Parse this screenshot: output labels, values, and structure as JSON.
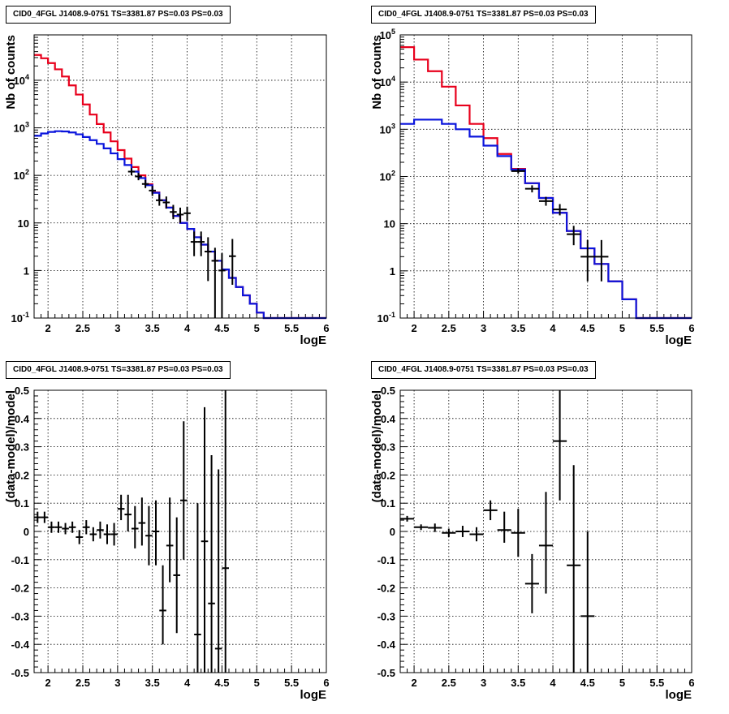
{
  "chart_data": [
    {
      "type": "line",
      "title": "CID0_4FGL J1408.9-0751 TS=3381.87 PS=0.03 PS=0.03",
      "xlabel": "logE",
      "ylabel": "Nb of counts",
      "yscale": "log",
      "xlim": [
        1.8,
        6
      ],
      "ylim": [
        0.1,
        90000
      ],
      "xticks": [
        "2",
        "2.5",
        "3",
        "3.5",
        "4",
        "4.5",
        "5",
        "5.5",
        "6"
      ],
      "yticks": [
        "10^-1",
        "1",
        "10",
        "10^2",
        "10^3",
        "10^4"
      ],
      "grid": true,
      "series": [
        {
          "color": "#e8001c",
          "style": "histogram",
          "edges": [
            1.8,
            1.9,
            2.0,
            2.1,
            2.2,
            2.3,
            2.4,
            2.5,
            2.6,
            2.7,
            2.8,
            2.9,
            3.0,
            3.1,
            3.2,
            3.3,
            3.4,
            3.5,
            3.6,
            3.7,
            3.8,
            3.9,
            4.0,
            4.1,
            4.2,
            4.3,
            4.4,
            4.5,
            4.6,
            4.7,
            4.8,
            4.9,
            5.0,
            5.1,
            6.0
          ],
          "values": [
            34000,
            29000,
            23000,
            17000,
            12000,
            7800,
            5000,
            3100,
            1900,
            1200,
            800,
            520,
            340,
            225,
            150,
            100,
            65,
            44,
            30,
            21,
            14,
            10,
            7.5,
            5,
            3.5,
            2.5,
            1.6,
            1.05,
            0.7,
            0.45,
            0.3,
            0.2,
            0.13,
            0.1
          ]
        },
        {
          "color": "#0a14dc",
          "style": "histogram",
          "edges": [
            1.8,
            1.9,
            2.0,
            2.1,
            2.2,
            2.3,
            2.4,
            2.5,
            2.6,
            2.7,
            2.8,
            2.9,
            3.0,
            3.1,
            3.2,
            3.3,
            3.4,
            3.5,
            3.6,
            3.7,
            3.8,
            3.9,
            4.0,
            4.1,
            4.2,
            4.3,
            4.4,
            4.5,
            4.6,
            4.7,
            4.8,
            4.9,
            5.0,
            5.1,
            6.0
          ],
          "values": [
            680,
            760,
            820,
            850,
            840,
            800,
            730,
            640,
            550,
            460,
            370,
            290,
            220,
            165,
            120,
            88,
            62,
            43,
            30,
            21,
            14,
            10,
            7.5,
            5,
            3.5,
            2.5,
            1.6,
            1.05,
            0.7,
            0.45,
            0.3,
            0.2,
            0.13,
            0.1
          ]
        },
        {
          "style": "data-points",
          "color": "#000000",
          "points": [
            {
              "x": 3.2,
              "y": 120,
              "xerr": 0.05,
              "ylo": 100,
              "yhi": 142
            },
            {
              "x": 3.3,
              "y": 95,
              "xerr": 0.05,
              "ylo": 79,
              "yhi": 113
            },
            {
              "x": 3.4,
              "y": 66,
              "xerr": 0.05,
              "ylo": 54,
              "yhi": 80
            },
            {
              "x": 3.5,
              "y": 48,
              "xerr": 0.05,
              "ylo": 37,
              "yhi": 60
            },
            {
              "x": 3.6,
              "y": 30,
              "xerr": 0.05,
              "ylo": 23,
              "yhi": 40
            },
            {
              "x": 3.7,
              "y": 27,
              "xerr": 0.05,
              "ylo": 20,
              "yhi": 36
            },
            {
              "x": 3.8,
              "y": 17,
              "xerr": 0.05,
              "ylo": 12,
              "yhi": 24
            },
            {
              "x": 3.9,
              "y": 15,
              "xerr": 0.05,
              "ylo": 10,
              "yhi": 21
            },
            {
              "x": 4.0,
              "y": 16,
              "xerr": 0.05,
              "ylo": 11,
              "yhi": 22
            },
            {
              "x": 4.1,
              "y": 4,
              "xerr": 0.05,
              "ylo": 2,
              "yhi": 6.6
            },
            {
              "x": 4.2,
              "y": 4,
              "xerr": 0.05,
              "ylo": 2,
              "yhi": 6.6
            },
            {
              "x": 4.3,
              "y": 2.5,
              "xerr": 0.05,
              "ylo": 0.6,
              "yhi": 5
            },
            {
              "x": 4.4,
              "y": 1.6,
              "xerr": 0.05,
              "ylo": 0.1,
              "yhi": 3
            },
            {
              "x": 4.5,
              "y": 1,
              "xerr": 0.05,
              "ylo": 0.1,
              "yhi": 2.3
            },
            {
              "x": 4.65,
              "y": 2,
              "xerr": 0.05,
              "ylo": 0.5,
              "yhi": 4.6
            }
          ]
        }
      ]
    },
    {
      "type": "line",
      "title": "CID0_4FGL J1408.9-0751 TS=3381.87 PS=0.03 PS=0.03",
      "xlabel": "logE",
      "ylabel": "Nb of counts",
      "yscale": "log",
      "xlim": [
        1.8,
        6
      ],
      "ylim": [
        0.1,
        100000
      ],
      "xticks": [
        "2",
        "2.5",
        "3",
        "3.5",
        "4",
        "4.5",
        "5",
        "5.5",
        "6"
      ],
      "yticks": [
        "10^-1",
        "1",
        "10",
        "10^2",
        "10^3",
        "10^4",
        "10^5"
      ],
      "grid": true,
      "series": [
        {
          "color": "#e8001c",
          "style": "histogram",
          "edges": [
            1.8,
            2.0,
            2.2,
            2.4,
            2.6,
            2.8,
            3.0,
            3.2,
            3.4,
            3.6,
            3.8,
            4.0,
            4.2,
            4.4,
            4.6,
            4.8,
            5.0,
            5.2,
            6.0
          ],
          "values": [
            55000,
            30000,
            17000,
            8000,
            3200,
            1300,
            650,
            300,
            145,
            72,
            35,
            17,
            7,
            3,
            1.4,
            0.6,
            0.25,
            0.1
          ]
        },
        {
          "color": "#0a14dc",
          "style": "histogram",
          "edges": [
            1.8,
            2.0,
            2.2,
            2.4,
            2.6,
            2.8,
            3.0,
            3.2,
            3.4,
            3.6,
            3.8,
            4.0,
            4.2,
            4.4,
            4.6,
            4.8,
            5.0,
            5.2,
            6.0
          ],
          "values": [
            1300,
            1600,
            1600,
            1300,
            1000,
            700,
            450,
            270,
            140,
            72,
            35,
            17,
            7,
            3,
            1.4,
            0.6,
            0.25,
            0.1
          ]
        },
        {
          "style": "data-points",
          "color": "#000000",
          "points": [
            {
              "x": 3.5,
              "y": 130,
              "xerr": 0.1,
              "ylo": 115,
              "yhi": 150
            },
            {
              "x": 3.7,
              "y": 55,
              "xerr": 0.1,
              "ylo": 46,
              "yhi": 65
            },
            {
              "x": 3.9,
              "y": 30,
              "xerr": 0.1,
              "ylo": 24,
              "yhi": 37
            },
            {
              "x": 4.1,
              "y": 20,
              "xerr": 0.1,
              "ylo": 15,
              "yhi": 26
            },
            {
              "x": 4.3,
              "y": 6,
              "xerr": 0.1,
              "ylo": 3.5,
              "yhi": 9
            },
            {
              "x": 4.5,
              "y": 2,
              "xerr": 0.1,
              "ylo": 0.6,
              "yhi": 4.5
            },
            {
              "x": 4.7,
              "y": 2,
              "xerr": 0.1,
              "ylo": 0.6,
              "yhi": 4.5
            }
          ]
        }
      ]
    },
    {
      "type": "scatter",
      "title": "CID0_4FGL J1408.9-0751 TS=3381.87 PS=0.03 PS=0.03",
      "xlabel": "logE",
      "ylabel": "(data-model)/model",
      "yscale": "linear",
      "xlim": [
        1.8,
        6
      ],
      "ylim": [
        -0.5,
        0.5
      ],
      "xticks": [
        "2",
        "2.5",
        "3",
        "3.5",
        "4",
        "4.5",
        "5",
        "5.5",
        "6"
      ],
      "yticks": [
        "-0.5",
        "-0.4",
        "-0.3",
        "-0.2",
        "-0.1",
        "0",
        "0.1",
        "0.2",
        "0.3",
        "0.4",
        "0.5"
      ],
      "grid": true,
      "series": [
        {
          "style": "data-points",
          "color": "#000000",
          "points": [
            {
              "x": 1.85,
              "y": 0.05,
              "xerr": 0.05,
              "ylo": 0.03,
              "yhi": 0.07
            },
            {
              "x": 1.95,
              "y": 0.05,
              "xerr": 0.05,
              "ylo": 0.03,
              "yhi": 0.07
            },
            {
              "x": 2.05,
              "y": 0.015,
              "xerr": 0.05,
              "ylo": -0.005,
              "yhi": 0.035
            },
            {
              "x": 2.15,
              "y": 0.015,
              "xerr": 0.05,
              "ylo": -0.005,
              "yhi": 0.035
            },
            {
              "x": 2.25,
              "y": 0.01,
              "xerr": 0.05,
              "ylo": -0.01,
              "yhi": 0.03
            },
            {
              "x": 2.35,
              "y": 0.015,
              "xerr": 0.05,
              "ylo": -0.005,
              "yhi": 0.035
            },
            {
              "x": 2.45,
              "y": -0.02,
              "xerr": 0.05,
              "ylo": -0.045,
              "yhi": 0.005
            },
            {
              "x": 2.55,
              "y": 0.015,
              "xerr": 0.05,
              "ylo": -0.01,
              "yhi": 0.04
            },
            {
              "x": 2.65,
              "y": -0.01,
              "xerr": 0.05,
              "ylo": -0.035,
              "yhi": 0.015
            },
            {
              "x": 2.75,
              "y": 0.005,
              "xerr": 0.05,
              "ylo": -0.025,
              "yhi": 0.035
            },
            {
              "x": 2.85,
              "y": -0.01,
              "xerr": 0.05,
              "ylo": -0.045,
              "yhi": 0.025
            },
            {
              "x": 2.95,
              "y": -0.01,
              "xerr": 0.05,
              "ylo": -0.05,
              "yhi": 0.03
            },
            {
              "x": 3.05,
              "y": 0.08,
              "xerr": 0.05,
              "ylo": 0.04,
              "yhi": 0.13
            },
            {
              "x": 3.15,
              "y": 0.06,
              "xerr": 0.05,
              "ylo": 0.0,
              "yhi": 0.13
            },
            {
              "x": 3.25,
              "y": 0.01,
              "xerr": 0.05,
              "ylo": -0.06,
              "yhi": 0.09
            },
            {
              "x": 3.35,
              "y": 0.03,
              "xerr": 0.05,
              "ylo": -0.05,
              "yhi": 0.12
            },
            {
              "x": 3.45,
              "y": -0.015,
              "xerr": 0.05,
              "ylo": -0.12,
              "yhi": 0.09
            },
            {
              "x": 3.55,
              "y": 0.0,
              "xerr": 0.05,
              "ylo": -0.12,
              "yhi": 0.11
            },
            {
              "x": 3.65,
              "y": -0.28,
              "xerr": 0.05,
              "ylo": -0.4,
              "yhi": -0.12
            },
            {
              "x": 3.75,
              "y": -0.05,
              "xerr": 0.05,
              "ylo": -0.18,
              "yhi": 0.12
            },
            {
              "x": 3.85,
              "y": -0.155,
              "xerr": 0.05,
              "ylo": -0.36,
              "yhi": 0.05
            },
            {
              "x": 3.95,
              "y": 0.11,
              "xerr": 0.05,
              "ylo": -0.1,
              "yhi": 0.39
            },
            {
              "x": 4.15,
              "y": -0.365,
              "xerr": 0.05,
              "ylo": -0.5,
              "yhi": 0.1
            },
            {
              "x": 4.25,
              "y": -0.035,
              "xerr": 0.05,
              "ylo": -0.5,
              "yhi": 0.44
            },
            {
              "x": 4.35,
              "y": -0.255,
              "xerr": 0.05,
              "ylo": -0.5,
              "yhi": 0.27
            },
            {
              "x": 4.45,
              "y": -0.415,
              "xerr": 0.05,
              "ylo": -0.5,
              "yhi": 0.22
            },
            {
              "x": 4.55,
              "y": -0.13,
              "xerr": 0.05,
              "ylo": -0.5,
              "yhi": 0.5
            }
          ]
        }
      ]
    },
    {
      "type": "scatter",
      "title": "CID0_4FGL J1408.9-0751 TS=3381.87 PS=0.03 PS=0.03",
      "xlabel": "logE",
      "ylabel": "(data-model)/model",
      "yscale": "linear",
      "xlim": [
        1.8,
        6
      ],
      "ylim": [
        -0.5,
        0.5
      ],
      "xticks": [
        "2",
        "2.5",
        "3",
        "3.5",
        "4",
        "4.5",
        "5",
        "5.5",
        "6"
      ],
      "yticks": [
        "-0.5",
        "-0.4",
        "-0.3",
        "-0.2",
        "-0.1",
        "0",
        "0.1",
        "0.2",
        "0.3",
        "0.4",
        "0.5"
      ],
      "grid": true,
      "series": [
        {
          "style": "data-points",
          "color": "#000000",
          "points": [
            {
              "x": 1.9,
              "y": 0.045,
              "xerr": 0.1,
              "ylo": 0.035,
              "yhi": 0.055
            },
            {
              "x": 2.1,
              "y": 0.015,
              "xerr": 0.1,
              "ylo": 0.005,
              "yhi": 0.025
            },
            {
              "x": 2.3,
              "y": 0.013,
              "xerr": 0.1,
              "ylo": -0.002,
              "yhi": 0.028
            },
            {
              "x": 2.5,
              "y": -0.005,
              "xerr": 0.1,
              "ylo": -0.02,
              "yhi": 0.01
            },
            {
              "x": 2.7,
              "y": 0.0,
              "xerr": 0.1,
              "ylo": -0.02,
              "yhi": 0.02
            },
            {
              "x": 2.9,
              "y": -0.01,
              "xerr": 0.1,
              "ylo": -0.035,
              "yhi": 0.015
            },
            {
              "x": 3.1,
              "y": 0.075,
              "xerr": 0.1,
              "ylo": 0.04,
              "yhi": 0.11
            },
            {
              "x": 3.3,
              "y": 0.005,
              "xerr": 0.1,
              "ylo": -0.04,
              "yhi": 0.07
            },
            {
              "x": 3.5,
              "y": -0.005,
              "xerr": 0.1,
              "ylo": -0.09,
              "yhi": 0.08
            },
            {
              "x": 3.7,
              "y": -0.185,
              "xerr": 0.1,
              "ylo": -0.29,
              "yhi": -0.08
            },
            {
              "x": 3.9,
              "y": -0.05,
              "xerr": 0.1,
              "ylo": -0.22,
              "yhi": 0.14
            },
            {
              "x": 4.1,
              "y": 0.32,
              "xerr": 0.1,
              "ylo": 0.11,
              "yhi": 0.5
            },
            {
              "x": 4.3,
              "y": -0.12,
              "xerr": 0.1,
              "ylo": -0.5,
              "yhi": 0.235
            },
            {
              "x": 4.5,
              "y": -0.3,
              "xerr": 0.1,
              "ylo": -0.5,
              "yhi": 0.0
            }
          ]
        }
      ]
    }
  ]
}
